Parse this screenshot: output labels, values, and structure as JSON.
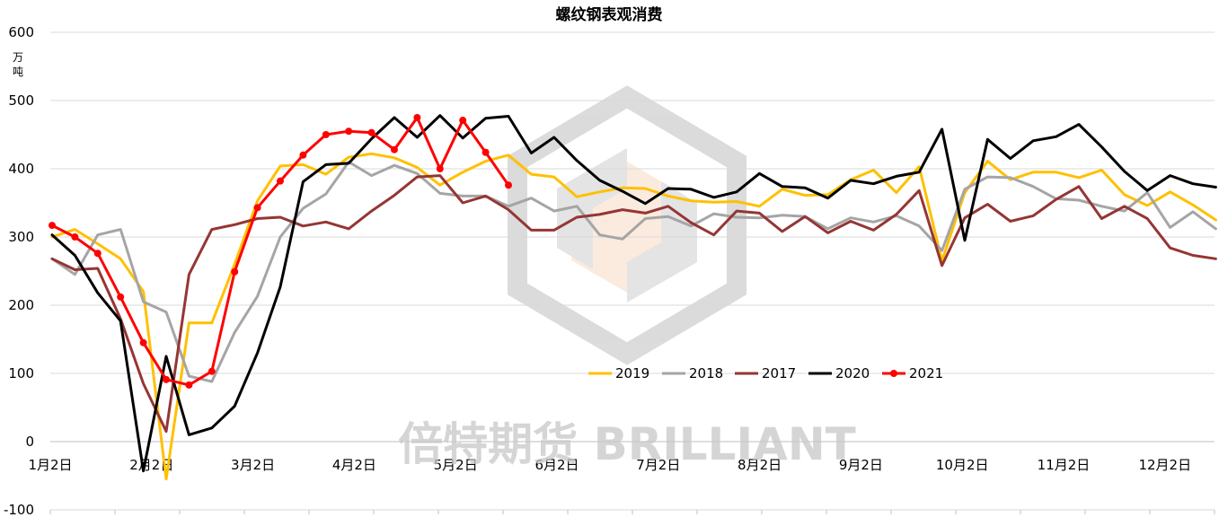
{
  "chart_data": {
    "type": "line",
    "title": "螺纹钢表观消费",
    "ylabel": "万吨",
    "ylim": [
      -100,
      600
    ],
    "yticks": [
      -100,
      0,
      100,
      200,
      300,
      400,
      500,
      600
    ],
    "xlabel": "",
    "x_tick_labels": [
      "1月2日",
      "2月2日",
      "3月2日",
      "4月2日",
      "5月2日",
      "6月2日",
      "7月2日",
      "8月2日",
      "9月2日",
      "10月2日",
      "11月2日",
      "12月2日"
    ],
    "grid": true,
    "legend_position": "center",
    "watermark": "倍特期货 BRILLIANT",
    "series": [
      {
        "name": "2019",
        "color": "#FFC000",
        "marker": false,
        "values": [
          300,
          311,
          290,
          268,
          220,
          -55,
          174,
          174,
          260,
          353,
          404,
          406,
          392,
          417,
          422,
          416,
          402,
          376,
          395,
          411,
          420,
          392,
          388,
          359,
          366,
          372,
          371,
          360,
          353,
          351,
          352,
          345,
          370,
          361,
          362,
          384,
          398,
          365,
          403,
          265,
          365,
          411,
          384,
          395,
          395,
          387,
          398,
          362,
          346,
          366,
          347,
          325
        ]
      },
      {
        "name": "2018",
        "color": "#A5A5A5",
        "marker": false,
        "values": [
          268,
          245,
          303,
          311,
          205,
          190,
          96,
          88,
          160,
          213,
          300,
          342,
          363,
          410,
          390,
          405,
          393,
          364,
          360,
          360,
          345,
          357,
          338,
          345,
          303,
          297,
          327,
          330,
          316,
          334,
          329,
          328,
          332,
          330,
          312,
          328,
          322,
          331,
          316,
          280,
          370,
          388,
          387,
          374,
          356,
          354,
          345,
          338,
          365,
          314,
          337,
          312
        ]
      },
      {
        "name": "2017",
        "color": "#943634",
        "marker": false,
        "values": [
          268,
          252,
          254,
          180,
          85,
          15,
          245,
          311,
          318,
          327,
          329,
          316,
          322,
          312,
          338,
          361,
          388,
          390,
          350,
          360,
          340,
          310,
          310,
          329,
          333,
          340,
          335,
          345,
          321,
          303,
          338,
          335,
          308,
          330,
          306,
          323,
          310,
          333,
          368,
          258,
          328,
          348,
          323,
          331,
          355,
          374,
          327,
          345,
          327,
          284,
          273,
          268
        ]
      },
      {
        "name": "2020",
        "color": "#000000",
        "marker": false,
        "values": [
          303,
          273,
          218,
          177,
          -43,
          125,
          10,
          20,
          52,
          130,
          227,
          381,
          406,
          408,
          444,
          475,
          446,
          478,
          445,
          474,
          477,
          423,
          446,
          412,
          383,
          367,
          349,
          371,
          370,
          358,
          366,
          393,
          374,
          372,
          357,
          383,
          378,
          389,
          395,
          458,
          295,
          443,
          415,
          441,
          447,
          465,
          432,
          396,
          368,
          390,
          378,
          373
        ]
      },
      {
        "name": "2021",
        "color": "#FF0000",
        "marker": true,
        "values": [
          317,
          300,
          276,
          212,
          145,
          91,
          83,
          103,
          249,
          343,
          382,
          420,
          450,
          455,
          453,
          428,
          475,
          400,
          471,
          424,
          376
        ]
      }
    ]
  }
}
